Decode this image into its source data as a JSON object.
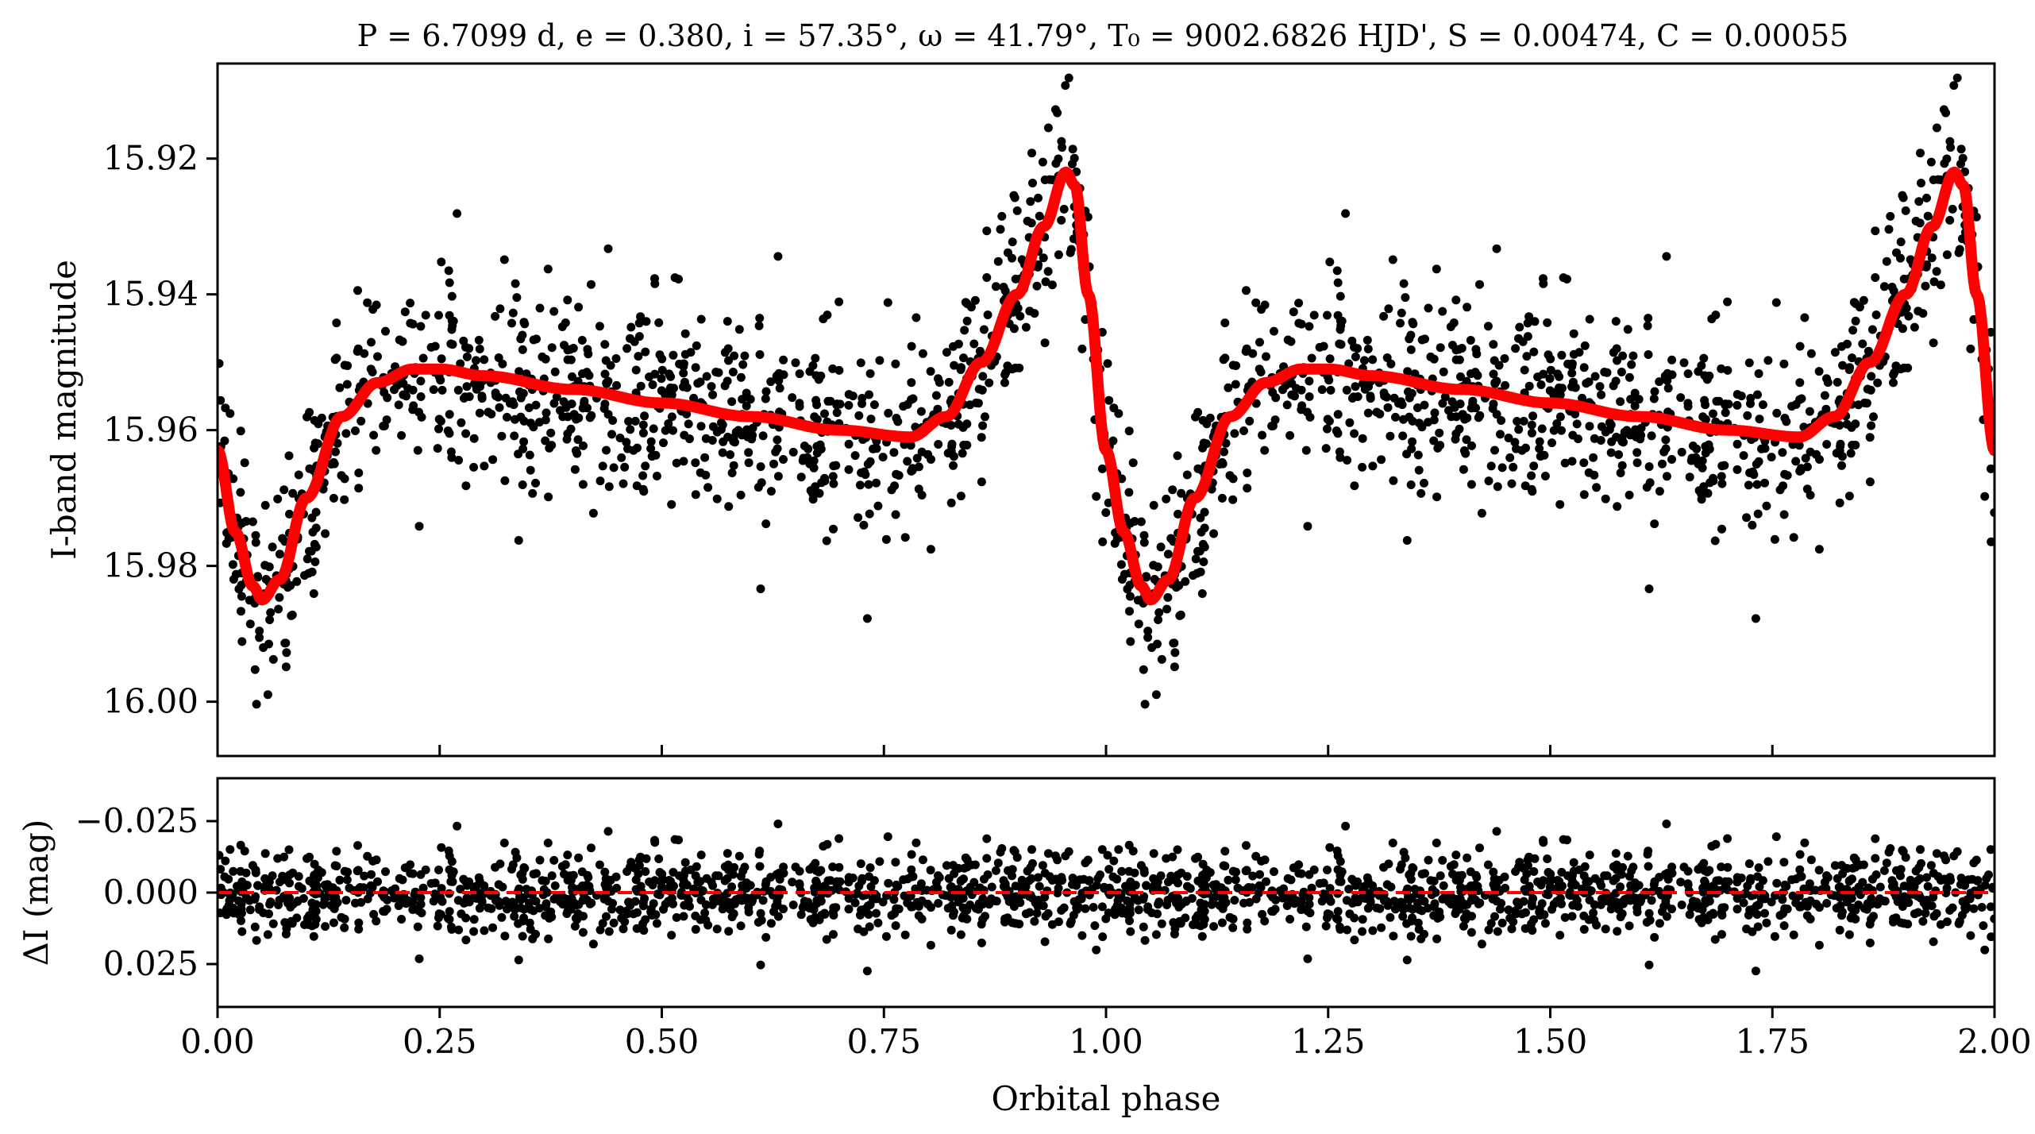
{
  "chart_data": [
    {
      "type": "scatter",
      "title": "P = 6.7099 d, e = 0.380, i = 57.35°, ω = 41.79°, T₀ = 9002.6826 HJD', S = 0.00474, C = 0.00055",
      "xlabel": "",
      "ylabel": "I-band magnitude",
      "ylim": [
        16.008,
        15.906
      ],
      "xlim": [
        0.0,
        2.0
      ],
      "y_inverted": true,
      "yticks": [
        15.92,
        15.94,
        15.96,
        15.98,
        16.0
      ],
      "yticks_label": [
        "15.92",
        "15.94",
        "15.96",
        "15.98",
        "16.00"
      ],
      "grid": false,
      "series": [
        {
          "kind": "points",
          "color": "#000000",
          "n": 2000,
          "description_values": "phase-folded photometry, repeated over two cycles",
          "model_curve_key": "model"
        },
        {
          "kind": "line",
          "color": "#ff0000",
          "model_key": "model"
        }
      ],
      "model": {
        "phase": [
          0.0,
          0.02,
          0.04,
          0.05,
          0.07,
          0.1,
          0.14,
          0.18,
          0.22,
          0.25,
          0.3,
          0.4,
          0.5,
          0.6,
          0.7,
          0.78,
          0.82,
          0.86,
          0.9,
          0.93,
          0.955,
          0.965,
          0.98,
          1.0
        ],
        "mag": [
          15.963,
          15.975,
          15.983,
          15.985,
          15.982,
          15.97,
          15.958,
          15.953,
          15.951,
          15.951,
          15.952,
          15.954,
          15.956,
          15.958,
          15.96,
          15.961,
          15.958,
          15.95,
          15.94,
          15.93,
          15.922,
          15.924,
          15.94,
          15.963
        ]
      }
    },
    {
      "type": "scatter",
      "title": "",
      "xlabel": "Orbital phase",
      "ylabel": "ΔI (mag)",
      "xlim": [
        0.0,
        2.0
      ],
      "ylim": [
        0.04,
        -0.04
      ],
      "y_inverted": true,
      "xticks": [
        0.0,
        0.25,
        0.5,
        0.75,
        1.0,
        1.25,
        1.5,
        1.75,
        2.0
      ],
      "xticks_label": [
        "0.00",
        "0.25",
        "0.50",
        "0.75",
        "1.00",
        "1.25",
        "1.50",
        "1.75",
        "2.00"
      ],
      "yticks": [
        -0.025,
        0.0,
        0.025
      ],
      "yticks_label": [
        "−0.025",
        "0.000",
        "0.025"
      ],
      "grid": false,
      "reference_line": {
        "y": 0.0,
        "color": "#ff0000",
        "style": "dashed"
      },
      "series": [
        {
          "kind": "points",
          "color": "#000000",
          "n": 2000,
          "description_values": "residuals of the photometry from the model"
        }
      ]
    }
  ]
}
